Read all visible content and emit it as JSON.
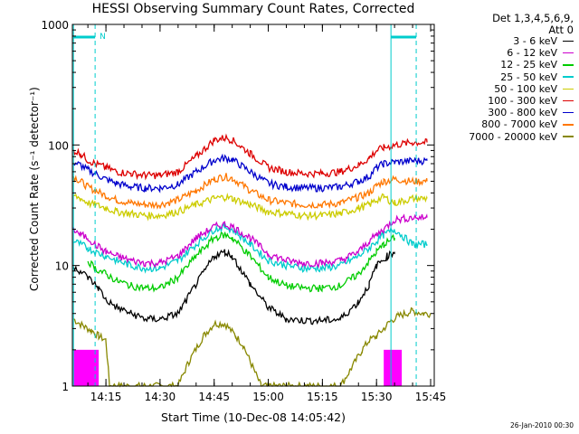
{
  "title": "HESSI Observing Summary Count Rates, Corrected",
  "stamp": "26-Jan-2010 00:30",
  "legend": {
    "header1": "Det 1,3,4,5,6,9,",
    "header2": "Att 0"
  },
  "chart_data": {
    "type": "line",
    "title": "HESSI Observing Summary Count Rates, Corrected",
    "xlabel": "Start Time (10-Dec-08 14:05:42)",
    "ylabel": "Corrected Count Rate (s⁻¹ detector⁻¹)",
    "y_scale": "log",
    "ylim": [
      1,
      1000
    ],
    "xlim": [
      "14:05:42",
      "15:46:00"
    ],
    "x_ticks": [
      "14:15",
      "14:30",
      "14:45",
      "15:00",
      "15:15",
      "15:30",
      "15:45"
    ],
    "y_ticks": [
      "1",
      "10",
      "100",
      "1000"
    ],
    "annotations": [
      {
        "text": "N",
        "x": "14:15"
      }
    ],
    "series": [
      {
        "name": "3 - 6 keV",
        "color": "#000000",
        "x": [
          "14:06",
          "14:10",
          "14:13",
          "14:15",
          "14:18",
          "14:22",
          "14:26",
          "14:30",
          "14:35",
          "14:40",
          "14:45",
          "14:48",
          "14:50",
          "14:55",
          "15:00",
          "15:05",
          "15:10",
          "15:15",
          "15:20",
          "15:25",
          "15:28",
          "15:30",
          "15:33",
          "15:35"
        ],
        "values": [
          10,
          8,
          6.5,
          5.2,
          4.5,
          4,
          3.6,
          3.6,
          4,
          7,
          12,
          13,
          12,
          7,
          4.5,
          3.6,
          3.5,
          3.5,
          3.6,
          5,
          7,
          10,
          12,
          13
        ]
      },
      {
        "name": "6 - 12 keV",
        "color": "#cc00cc",
        "x": [
          "14:06",
          "14:08",
          "14:10",
          "14:12",
          "14:15",
          "14:18",
          "14:22",
          "14:26",
          "14:30",
          "14:35",
          "14:40",
          "14:45",
          "14:48",
          "14:50",
          "14:55",
          "15:00",
          "15:05",
          "15:10",
          "15:15",
          "15:20",
          "15:25",
          "15:28",
          "15:30",
          "15:32",
          "15:35",
          "15:40",
          "15:44"
        ],
        "values": [
          20,
          18,
          17,
          15,
          13,
          12,
          11,
          10.5,
          10.5,
          12,
          17,
          21,
          22,
          21,
          17,
          12.5,
          11,
          10.5,
          10.5,
          11,
          13,
          16,
          18,
          20,
          24,
          25,
          25
        ]
      },
      {
        "name": "12 - 25 keV",
        "color": "#00cc00",
        "x": [
          "14:10",
          "14:12",
          "14:15",
          "14:18",
          "14:22",
          "14:26",
          "14:30",
          "14:35",
          "14:40",
          "14:45",
          "14:48",
          "14:50",
          "14:55",
          "15:00",
          "15:05",
          "15:10",
          "15:15",
          "15:20",
          "15:25",
          "15:28",
          "15:30",
          "15:32",
          "15:35"
        ],
        "values": [
          11,
          9.5,
          8.5,
          7.5,
          6.8,
          6.5,
          6.5,
          8,
          12,
          17,
          18,
          17,
          12,
          8,
          6.8,
          6.5,
          6.5,
          6.8,
          8.5,
          11,
          13,
          15,
          17
        ]
      },
      {
        "name": "25 - 50 keV",
        "color": "#00cccc",
        "x": [
          "14:06",
          "14:08",
          "14:10",
          "14:12",
          "14:15",
          "14:18",
          "14:22",
          "14:26",
          "14:30",
          "14:35",
          "14:40",
          "14:45",
          "14:48",
          "14:50",
          "14:55",
          "15:00",
          "15:05",
          "15:10",
          "15:15",
          "15:20",
          "15:25",
          "15:28",
          "15:30",
          "15:32",
          "15:35",
          "15:40",
          "15:44"
        ],
        "values": [
          16,
          15,
          14,
          13,
          12,
          11,
          10,
          9.5,
          9.5,
          11,
          15,
          20,
          21,
          20,
          15,
          11,
          10,
          9.5,
          9.5,
          10,
          12,
          14,
          16,
          18,
          20,
          15,
          15
        ]
      },
      {
        "name": "50 - 100 keV",
        "color": "#cccc00",
        "x": [
          "14:06",
          "14:08",
          "14:10",
          "14:12",
          "14:15",
          "14:18",
          "14:22",
          "14:26",
          "14:30",
          "14:35",
          "14:40",
          "14:45",
          "14:48",
          "14:50",
          "14:55",
          "15:00",
          "15:05",
          "15:10",
          "15:15",
          "15:20",
          "15:25",
          "15:28",
          "15:30",
          "15:32",
          "15:35",
          "15:40",
          "15:44"
        ],
        "values": [
          38,
          36,
          33,
          32,
          30,
          28,
          27,
          26,
          26,
          28,
          32,
          36,
          37,
          36,
          32,
          28,
          27,
          26,
          26,
          27,
          30,
          32,
          35,
          37,
          33,
          36,
          36
        ]
      },
      {
        "name": "100 - 300 keV",
        "color": "#dd0000",
        "x": [
          "14:06",
          "14:08",
          "14:10",
          "14:12",
          "14:15",
          "14:18",
          "14:22",
          "14:26",
          "14:30",
          "14:35",
          "14:40",
          "14:45",
          "14:48",
          "14:50",
          "14:55",
          "15:00",
          "15:05",
          "15:10",
          "15:15",
          "15:20",
          "15:25",
          "15:28",
          "15:30",
          "15:32",
          "15:35",
          "15:40",
          "15:44"
        ],
        "values": [
          90,
          85,
          75,
          70,
          65,
          60,
          58,
          56,
          56,
          60,
          80,
          110,
          115,
          110,
          85,
          65,
          60,
          58,
          58,
          60,
          68,
          78,
          90,
          95,
          100,
          105,
          105
        ]
      },
      {
        "name": "300 - 800 keV",
        "color": "#0000cc",
        "x": [
          "14:06",
          "14:08",
          "14:10",
          "14:12",
          "14:15",
          "14:18",
          "14:22",
          "14:26",
          "14:30",
          "14:35",
          "14:40",
          "14:45",
          "14:48",
          "14:50",
          "14:55",
          "15:00",
          "15:05",
          "15:10",
          "15:15",
          "15:20",
          "15:25",
          "15:28",
          "15:30",
          "15:32",
          "15:35",
          "15:40",
          "15:44"
        ],
        "values": [
          72,
          68,
          62,
          58,
          52,
          48,
          45,
          44,
          44,
          47,
          60,
          75,
          78,
          76,
          60,
          48,
          45,
          44,
          44,
          45,
          50,
          55,
          65,
          70,
          72,
          74,
          74
        ]
      },
      {
        "name": "800 - 7000 keV",
        "color": "#ff7700",
        "x": [
          "14:06",
          "14:08",
          "14:10",
          "14:12",
          "14:15",
          "14:18",
          "14:22",
          "14:26",
          "14:30",
          "14:35",
          "14:40",
          "14:45",
          "14:48",
          "14:50",
          "14:55",
          "15:00",
          "15:05",
          "15:10",
          "15:15",
          "15:20",
          "15:25",
          "15:28",
          "15:30",
          "15:32",
          "15:35",
          "15:40",
          "15:44"
        ],
        "values": [
          55,
          50,
          45,
          42,
          38,
          35,
          33,
          32,
          32,
          35,
          42,
          52,
          55,
          53,
          42,
          35,
          33,
          32,
          32,
          33,
          37,
          40,
          46,
          50,
          52,
          50,
          50
        ]
      },
      {
        "name": "7000 - 20000 keV",
        "color": "#888800",
        "x": [
          "14:06",
          "14:09",
          "14:11",
          "14:13",
          "14:15",
          "14:16",
          "14:25",
          "14:35",
          "14:38",
          "14:42",
          "14:45",
          "14:48",
          "14:51",
          "14:53",
          "14:55",
          "14:58",
          "15:05",
          "15:20",
          "15:23",
          "15:26",
          "15:28",
          "15:30",
          "15:32",
          "15:34",
          "15:36",
          "15:38",
          "15:40",
          "15:43",
          "15:45"
        ],
        "values": [
          3.6,
          3.1,
          2.9,
          2.6,
          2.4,
          1,
          1,
          1,
          1.6,
          2.6,
          3.3,
          3.3,
          2.6,
          2.2,
          1.6,
          1,
          1,
          1,
          1.4,
          2,
          2.4,
          2.6,
          3,
          3.5,
          3.8,
          4,
          4.2,
          4,
          4
        ]
      }
    ]
  }
}
